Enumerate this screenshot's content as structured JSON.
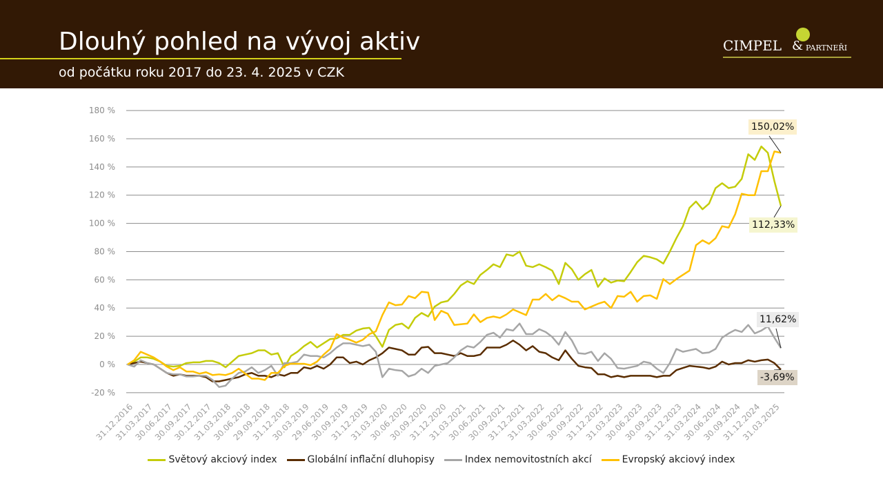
{
  "header": {
    "title": "Dlouhý pohled na vývoj aktiv",
    "subtitle": "od počátku roku 2017 do 23. 4. 2025 v CZK",
    "logo_text": "CIMPEL & PARTNEŘI",
    "logo_main": "CIMPEL",
    "logo_amp": "&",
    "logo_sub": "PARTNEŘI"
  },
  "chart_data": {
    "type": "line",
    "title": "",
    "xlabel": "",
    "ylabel": "",
    "ylim": [
      -20,
      180
    ],
    "yticks": [
      -20,
      0,
      20,
      40,
      60,
      80,
      100,
      120,
      140,
      160,
      180
    ],
    "ytick_labels": [
      "-20 %",
      "0 %",
      "20 %",
      "40 %",
      "60 %",
      "80 %",
      "100 %",
      "120 %",
      "140 %",
      "160 %",
      "180 %"
    ],
    "x_tick_labels": [
      "31.12.2016",
      "31.03.2017",
      "30.06.2017",
      "30.09.2017",
      "30.12.2017",
      "31.03.2018",
      "30.06.2018",
      "29.09.2018",
      "31.12.2018",
      "30.03.2019",
      "29.06.2019",
      "30.09.2019",
      "31.12.2019",
      "31.03.2020",
      "30.06.2020",
      "30.09.2020",
      "31.12.2020",
      "31.03.2021",
      "30.06.2021",
      "30.09.2021",
      "31.12.2021",
      "31.03.2022",
      "30.06.2022",
      "30.09.2022",
      "31.12.2022",
      "31.03.2023",
      "30.06.2023",
      "30.09.2023",
      "31.12.2023",
      "31.03.2024",
      "30.06.2024",
      "30.09.2024",
      "31.12.2024",
      "31.03.2025"
    ],
    "grid": true,
    "legend_position": "bottom",
    "series": [
      {
        "name": "Světový akciový index",
        "color": "#c4cc0a",
        "values": [
          0,
          2,
          5,
          5,
          4,
          2,
          -1,
          -1.5,
          -1,
          1,
          1.5,
          1.5,
          2.5,
          2.5,
          1,
          -2,
          2,
          6,
          7,
          8,
          10,
          10,
          7,
          8,
          -2,
          6,
          9,
          13,
          16,
          12,
          15,
          18,
          18.5,
          21,
          21,
          24,
          25.5,
          26,
          20,
          12.5,
          24.5,
          28,
          29,
          25.5,
          33,
          36.5,
          34,
          41,
          44,
          45,
          50,
          56,
          59,
          57,
          63.5,
          67,
          71,
          69,
          78,
          77,
          80,
          70,
          69,
          71,
          69,
          66.5,
          57,
          72,
          67.5,
          60,
          64,
          67,
          55,
          61,
          58,
          59.5,
          59,
          65.5,
          72.5,
          77,
          76,
          74.5,
          71.5,
          80,
          89.5,
          98,
          111,
          115.5,
          110,
          114,
          125,
          128.5,
          125,
          126,
          131.5,
          149,
          145,
          154.5,
          150,
          130,
          112.33
        ],
        "end_label": "112,33%",
        "label_bg": "#f5f5cf"
      },
      {
        "name": "Globální inflační dluhopisy",
        "color": "#5a2d00",
        "values": [
          0,
          1,
          2,
          1,
          0,
          -3,
          -6,
          -8,
          -7,
          -8,
          -8,
          -8,
          -9,
          -12,
          -12,
          -11,
          -10,
          -9,
          -7,
          -6,
          -8,
          -8,
          -9,
          -7,
          -8,
          -6,
          -6,
          -2,
          -3,
          -1,
          -3,
          0,
          5,
          5,
          1,
          2,
          0,
          3,
          5,
          8,
          12,
          11,
          10,
          7,
          7,
          12,
          12.5,
          8,
          8,
          7,
          6,
          8,
          6,
          6,
          7,
          12,
          12,
          12,
          14,
          17,
          14,
          10,
          13,
          9,
          8,
          5,
          3,
          10,
          4,
          -1,
          -2,
          -2.5,
          -7,
          -7,
          -9,
          -8,
          -9,
          -8,
          -8,
          -8,
          -8,
          -9,
          -8,
          -8,
          -4,
          -2.5,
          -1,
          -1.5,
          -2,
          -3,
          -1.5,
          2,
          0,
          1,
          1,
          3,
          2,
          3,
          3.5,
          1,
          -3.69
        ],
        "end_label": "-3,69%",
        "label_bg": "#ddd4c6"
      },
      {
        "name": "Index nemovitostních akcí",
        "color": "#a6a6a6",
        "values": [
          0,
          -1.5,
          3,
          1,
          0,
          -3,
          -6,
          -7,
          -7,
          -8.5,
          -8.5,
          -8,
          -8,
          -11,
          -16,
          -15,
          -10,
          -6,
          -5,
          -2,
          -6,
          -4,
          -1,
          -8,
          1,
          1,
          2,
          7,
          6,
          6,
          5,
          8,
          12,
          15,
          15,
          14,
          13,
          14,
          9,
          -9,
          -3,
          -4,
          -4.5,
          -8.5,
          -7,
          -3,
          -6,
          -1,
          0,
          1,
          5,
          10,
          13,
          12,
          16,
          21,
          22.5,
          19,
          25,
          24,
          29,
          21.5,
          21.5,
          25,
          23,
          19.5,
          14,
          23,
          17,
          8,
          7.5,
          9,
          2.5,
          8,
          4,
          -2.5,
          -3,
          -2,
          -1,
          2,
          1,
          -3,
          -6,
          1,
          11,
          9,
          10,
          11,
          8,
          8.5,
          11,
          19,
          22,
          24.5,
          23,
          28,
          22,
          24,
          27,
          19,
          11.62
        ],
        "end_label": "11,62%",
        "label_bg": "#ececec"
      },
      {
        "name": "Evropský akciový index",
        "color": "#ffc000",
        "values": [
          0,
          3,
          9,
          7,
          5,
          2,
          -1.5,
          -4,
          -2,
          -5,
          -5,
          -6.5,
          -5.5,
          -7.5,
          -7,
          -7.5,
          -6,
          -3,
          -6.5,
          -10,
          -10,
          -11,
          -6,
          -6,
          -1,
          0.5,
          0.5,
          0.5,
          -0.5,
          2,
          7,
          11,
          21.5,
          19,
          17.5,
          15.5,
          17.5,
          21.5,
          23.5,
          35,
          44,
          42,
          42.5,
          48.5,
          47,
          51.5,
          51,
          31.5,
          38,
          36,
          28,
          28.5,
          29,
          35.5,
          30,
          33,
          34,
          33,
          35.5,
          39,
          37,
          35,
          46,
          46,
          50,
          45.5,
          49,
          47,
          44.5,
          44.5,
          39,
          41,
          43,
          44.5,
          40,
          48.5,
          48,
          51.5,
          44.5,
          48.5,
          49,
          46.5,
          60.5,
          57,
          60.5,
          63.5,
          66.5,
          84.5,
          88,
          85.5,
          89.5,
          98,
          97,
          106.5,
          121,
          120,
          120,
          137,
          137,
          151,
          150.02
        ],
        "end_label": "150,02%",
        "label_bg": "#fcf0cc"
      }
    ]
  }
}
